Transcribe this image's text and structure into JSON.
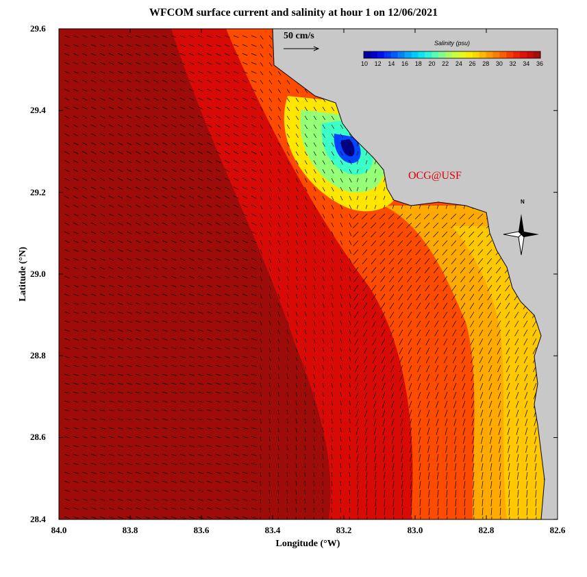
{
  "title": "WFCOM surface current and salinity at hour 1 on 12/06/2021",
  "xlabel": "Longitude (°W)",
  "ylabel": "Latitude (°N)",
  "x_ticks": [
    "84.0",
    "83.8",
    "83.6",
    "83.4",
    "83.2",
    "83.0",
    "82.8",
    "82.6"
  ],
  "y_ticks": [
    "29.6",
    "29.4",
    "29.2",
    "29.0",
    "28.8",
    "28.6",
    "28.4"
  ],
  "scale_label": "50 cm/s",
  "watermark": "OCG@USF",
  "north_label": "N",
  "colorbar": {
    "title": "Salinity (psu)",
    "ticks": [
      "10",
      "12",
      "14",
      "16",
      "18",
      "20",
      "22",
      "24",
      "26",
      "28",
      "30",
      "32",
      "34",
      "36"
    ],
    "min": 10,
    "max": 36
  },
  "colors": {
    "land": "#c8c8c8",
    "open_water": "#9e0c0a",
    "watermark": "#e00000"
  },
  "chart_data": {
    "type": "heatmap",
    "variable": "salinity",
    "units": "psu",
    "x_range": [
      84.0,
      82.6
    ],
    "y_range": [
      28.4,
      29.6
    ],
    "regions": [
      {
        "salinity": 36,
        "desc": "offshore western half"
      },
      {
        "salinity": 34,
        "desc": "mid shelf"
      },
      {
        "salinity": 31,
        "desc": "inner shelf"
      },
      {
        "salinity": 28,
        "desc": "near coast south"
      },
      {
        "salinity": 26,
        "desc": "plume edge"
      },
      {
        "salinity": 20,
        "desc": "river plume"
      },
      {
        "salinity": 10,
        "desc": "plume core"
      }
    ],
    "vectors": "surface current arrows, scale 50 cm/s"
  }
}
